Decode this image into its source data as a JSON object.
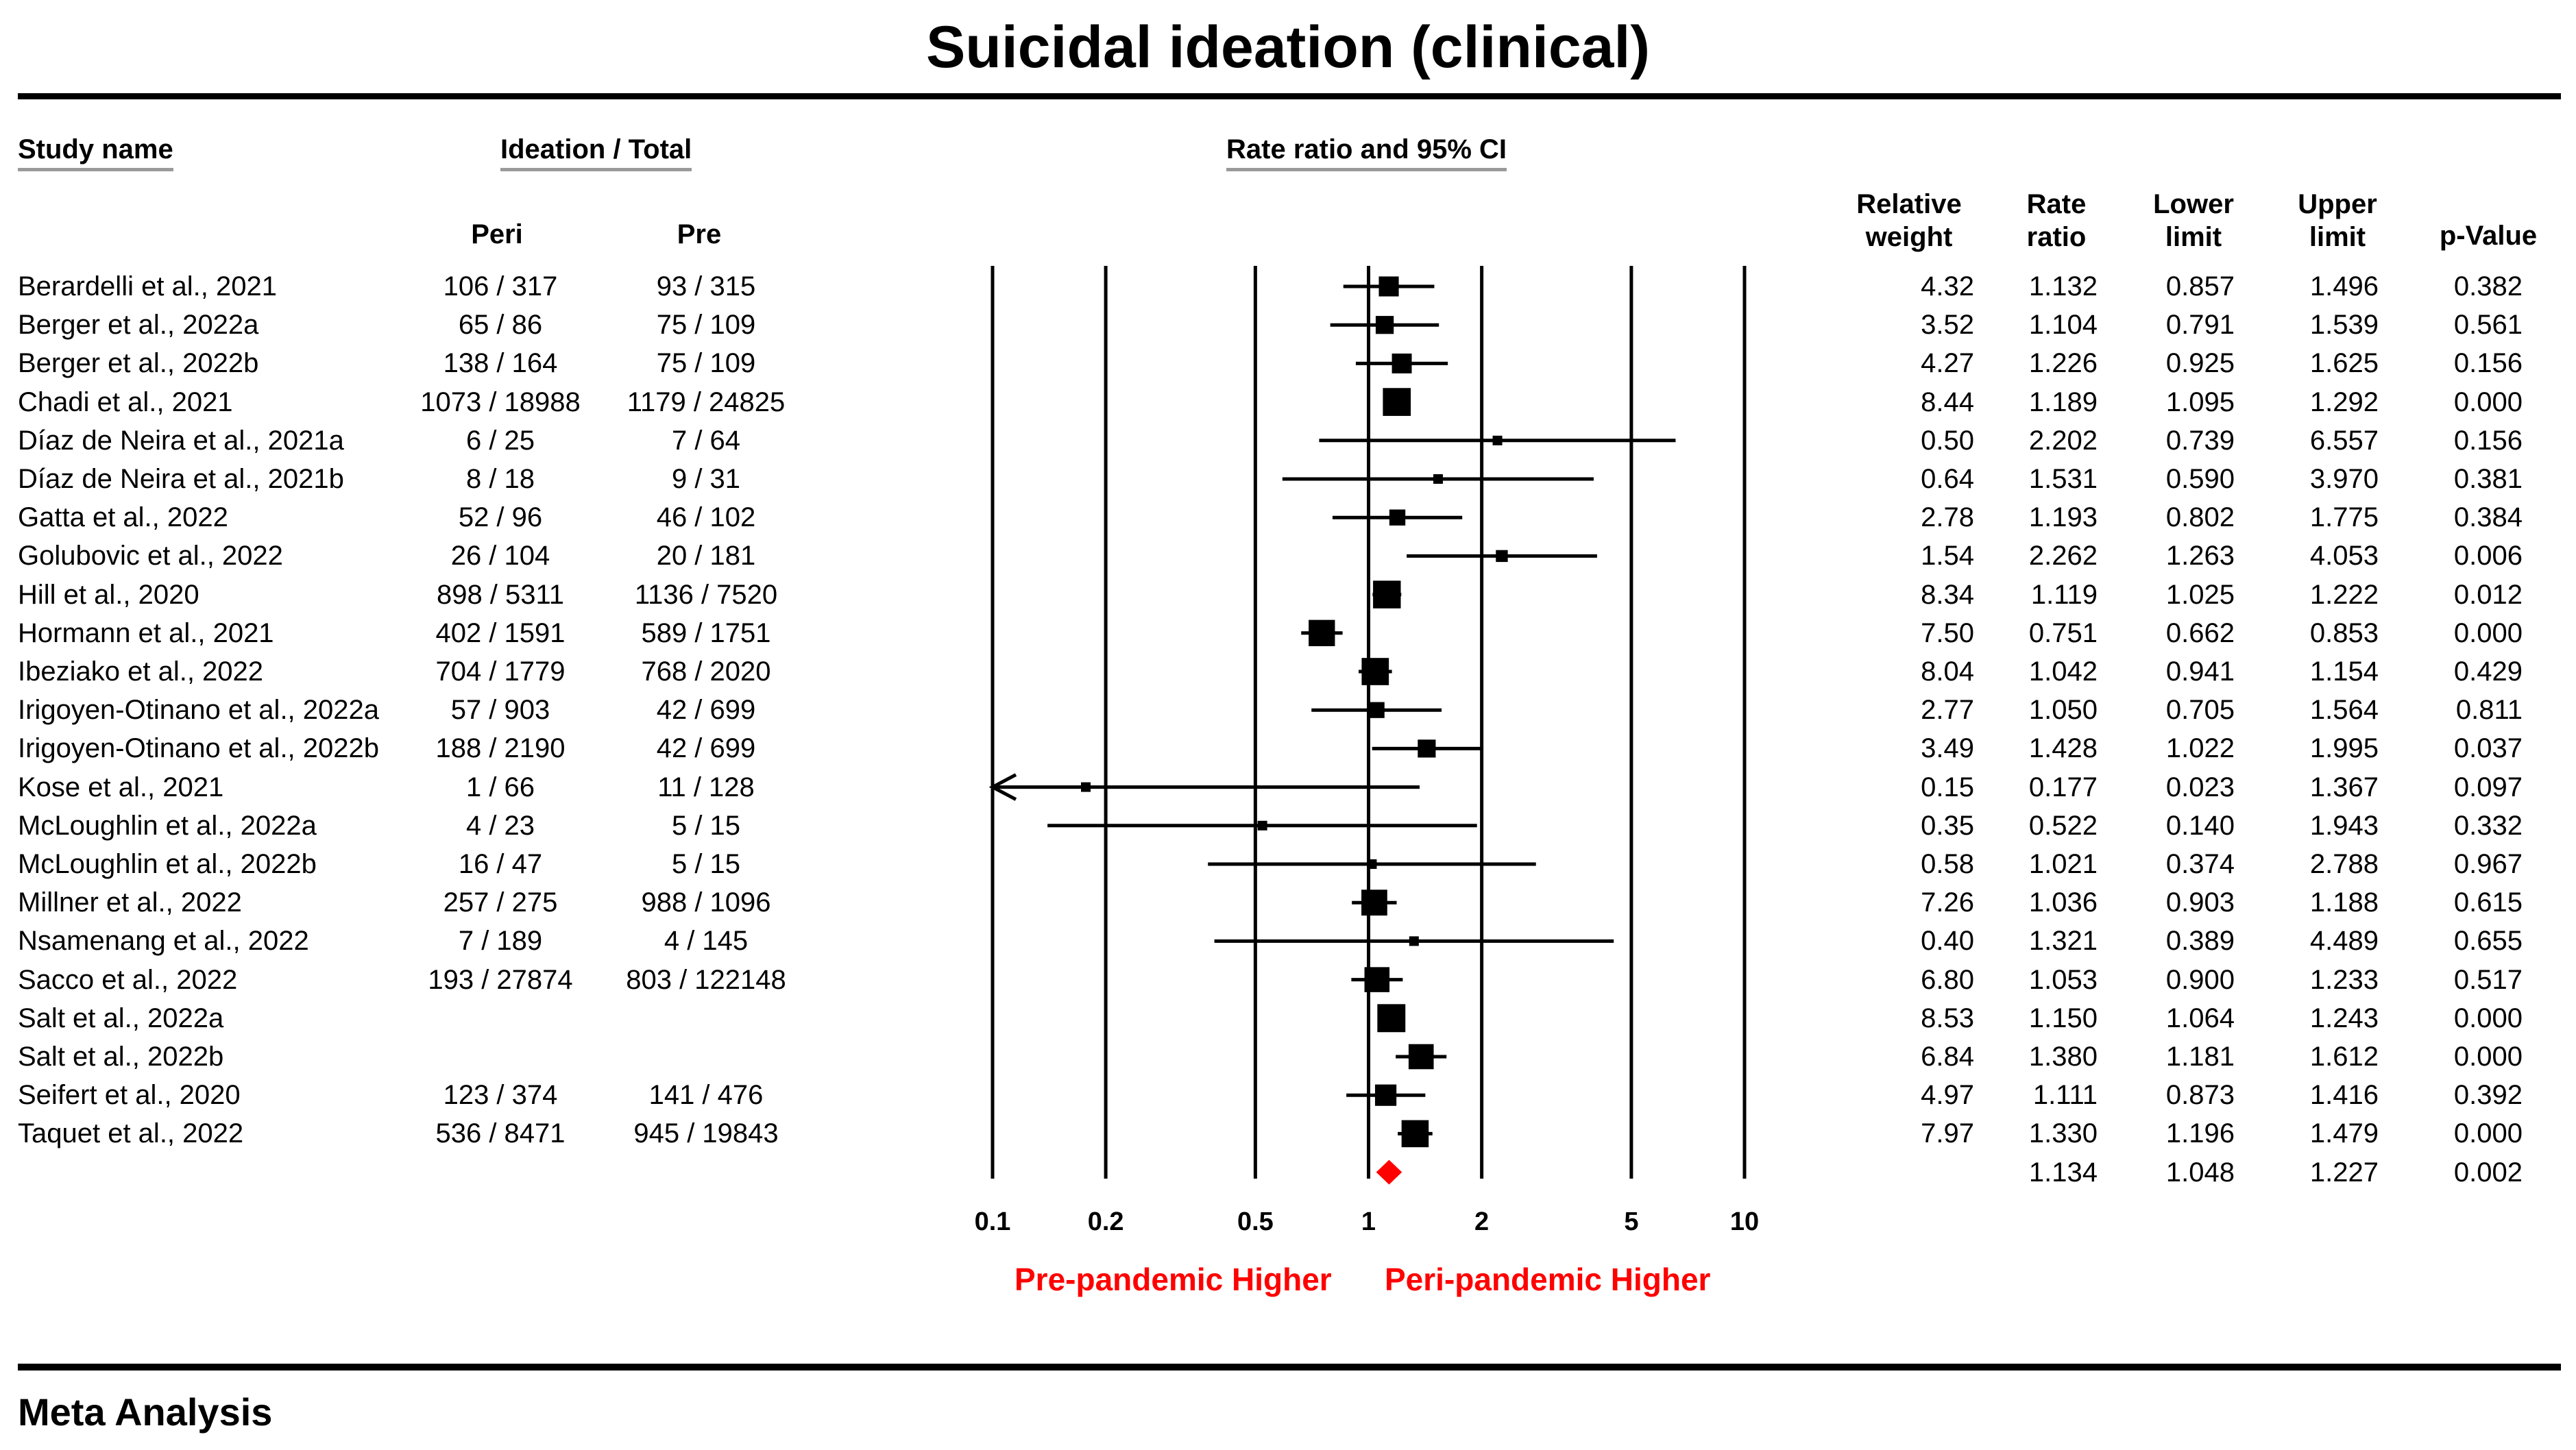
{
  "chart_data": {
    "type": "forest",
    "title": "Suicidal ideation (clinical)",
    "columns": {
      "study": "Study name",
      "group_header": "Ideation / Total",
      "peri": "Peri",
      "pre": "Pre",
      "plot": "Rate ratio and 95% CI",
      "weight": [
        "Relative",
        "weight"
      ],
      "rate": [
        "Rate",
        "ratio"
      ],
      "lower": [
        "Lower",
        "limit"
      ],
      "upper": [
        "Upper",
        "limit"
      ],
      "p": "p-Value"
    },
    "xscale": "log",
    "xlim": [
      0.1,
      10
    ],
    "xticks": [
      {
        "value": 0.1,
        "label": "0.1"
      },
      {
        "value": 0.2,
        "label": "0.2"
      },
      {
        "value": 0.5,
        "label": "0.5"
      },
      {
        "value": 1,
        "label": "1"
      },
      {
        "value": 2,
        "label": "2"
      },
      {
        "value": 5,
        "label": "5"
      },
      {
        "value": 10,
        "label": "10"
      }
    ],
    "left_label": "Pre-pandemic Higher",
    "right_label": "Peri-pandemic Higher",
    "label_color": "#ff0000",
    "diamond_color": "#ff0000",
    "rows": [
      {
        "study": "Berardelli et al., 2021",
        "peri": "106 / 317",
        "pre": "93 / 315",
        "weight": "4.32",
        "rr": "1.132",
        "lower": "0.857",
        "upper": "1.496",
        "p": "0.382"
      },
      {
        "study": "Berger et al., 2022a",
        "peri": "65 / 86",
        "pre": "75 / 109",
        "weight": "3.52",
        "rr": "1.104",
        "lower": "0.791",
        "upper": "1.539",
        "p": "0.561"
      },
      {
        "study": "Berger et al., 2022b",
        "peri": "138 / 164",
        "pre": "75 / 109",
        "weight": "4.27",
        "rr": "1.226",
        "lower": "0.925",
        "upper": "1.625",
        "p": "0.156"
      },
      {
        "study": "Chadi et al., 2021",
        "peri": "1073 / 18988",
        "pre": "1179 / 24825",
        "weight": "8.44",
        "rr": "1.189",
        "lower": "1.095",
        "upper": "1.292",
        "p": "0.000"
      },
      {
        "study": "Díaz de Neira et al., 2021a",
        "peri": "6 / 25",
        "pre": "7 / 64",
        "weight": "0.50",
        "rr": "2.202",
        "lower": "0.739",
        "upper": "6.557",
        "p": "0.156"
      },
      {
        "study": "Díaz de Neira et al., 2021b",
        "peri": "8 / 18",
        "pre": "9 / 31",
        "weight": "0.64",
        "rr": "1.531",
        "lower": "0.590",
        "upper": "3.970",
        "p": "0.381"
      },
      {
        "study": "Gatta et al., 2022",
        "peri": "52 / 96",
        "pre": "46 / 102",
        "weight": "2.78",
        "rr": "1.193",
        "lower": "0.802",
        "upper": "1.775",
        "p": "0.384"
      },
      {
        "study": "Golubovic et al., 2022",
        "peri": "26 / 104",
        "pre": "20 / 181",
        "weight": "1.54",
        "rr": "2.262",
        "lower": "1.263",
        "upper": "4.053",
        "p": "0.006"
      },
      {
        "study": "Hill et al., 2020",
        "peri": "898 / 5311",
        "pre": "1136 / 7520",
        "weight": "8.34",
        "rr": "1.119",
        "lower": "1.025",
        "upper": "1.222",
        "p": "0.012"
      },
      {
        "study": "Hormann et al., 2021",
        "peri": "402 / 1591",
        "pre": "589 / 1751",
        "weight": "7.50",
        "rr": "0.751",
        "lower": "0.662",
        "upper": "0.853",
        "p": "0.000"
      },
      {
        "study": "Ibeziako et al., 2022",
        "peri": "704 / 1779",
        "pre": "768 / 2020",
        "weight": "8.04",
        "rr": "1.042",
        "lower": "0.941",
        "upper": "1.154",
        "p": "0.429"
      },
      {
        "study": "Irigoyen-Otinano et al., 2022a",
        "peri": "57 / 903",
        "pre": "42 / 699",
        "weight": "2.77",
        "rr": "1.050",
        "lower": "0.705",
        "upper": "1.564",
        "p": "0.811"
      },
      {
        "study": "Irigoyen-Otinano et al., 2022b",
        "peri": "188 / 2190",
        "pre": "42 / 699",
        "weight": "3.49",
        "rr": "1.428",
        "lower": "1.022",
        "upper": "1.995",
        "p": "0.037"
      },
      {
        "study": "Kose et al., 2021",
        "peri": "1 / 66",
        "pre": "11 / 128",
        "weight": "0.15",
        "rr": "0.177",
        "lower": "0.023",
        "upper": "1.367",
        "p": "0.097"
      },
      {
        "study": "McLoughlin et al., 2022a",
        "peri": "4 / 23",
        "pre": "5 / 15",
        "weight": "0.35",
        "rr": "0.522",
        "lower": "0.140",
        "upper": "1.943",
        "p": "0.332"
      },
      {
        "study": "McLoughlin et al., 2022b",
        "peri": "16 / 47",
        "pre": "5 / 15",
        "weight": "0.58",
        "rr": "1.021",
        "lower": "0.374",
        "upper": "2.788",
        "p": "0.967"
      },
      {
        "study": "Millner et al., 2022",
        "peri": "257 / 275",
        "pre": "988 / 1096",
        "weight": "7.26",
        "rr": "1.036",
        "lower": "0.903",
        "upper": "1.188",
        "p": "0.615"
      },
      {
        "study": "Nsamenang et al., 2022",
        "peri": "7 / 189",
        "pre": "4 / 145",
        "weight": "0.40",
        "rr": "1.321",
        "lower": "0.389",
        "upper": "4.489",
        "p": "0.655"
      },
      {
        "study": "Sacco et al., 2022",
        "peri": "193 / 27874",
        "pre": "803 / 122148",
        "weight": "6.80",
        "rr": "1.053",
        "lower": "0.900",
        "upper": "1.233",
        "p": "0.517"
      },
      {
        "study": "Salt et al., 2022a",
        "peri": "",
        "pre": "",
        "weight": "8.53",
        "rr": "1.150",
        "lower": "1.064",
        "upper": "1.243",
        "p": "0.000"
      },
      {
        "study": "Salt et al., 2022b",
        "peri": "",
        "pre": "",
        "weight": "6.84",
        "rr": "1.380",
        "lower": "1.181",
        "upper": "1.612",
        "p": "0.000"
      },
      {
        "study": "Seifert et al., 2020",
        "peri": "123 / 374",
        "pre": "141 / 476",
        "weight": "4.97",
        "rr": "1.111",
        "lower": "0.873",
        "upper": "1.416",
        "p": "0.392"
      },
      {
        "study": "Taquet et al., 2022",
        "peri": "536 / 8471",
        "pre": "945 / 19843",
        "weight": "7.97",
        "rr": "1.330",
        "lower": "1.196",
        "upper": "1.479",
        "p": "0.000"
      }
    ],
    "summary": {
      "rr": "1.134",
      "lower": "1.048",
      "upper": "1.227",
      "p": "0.002"
    }
  },
  "footer": {
    "meta_analysis": "Meta Analysis"
  }
}
